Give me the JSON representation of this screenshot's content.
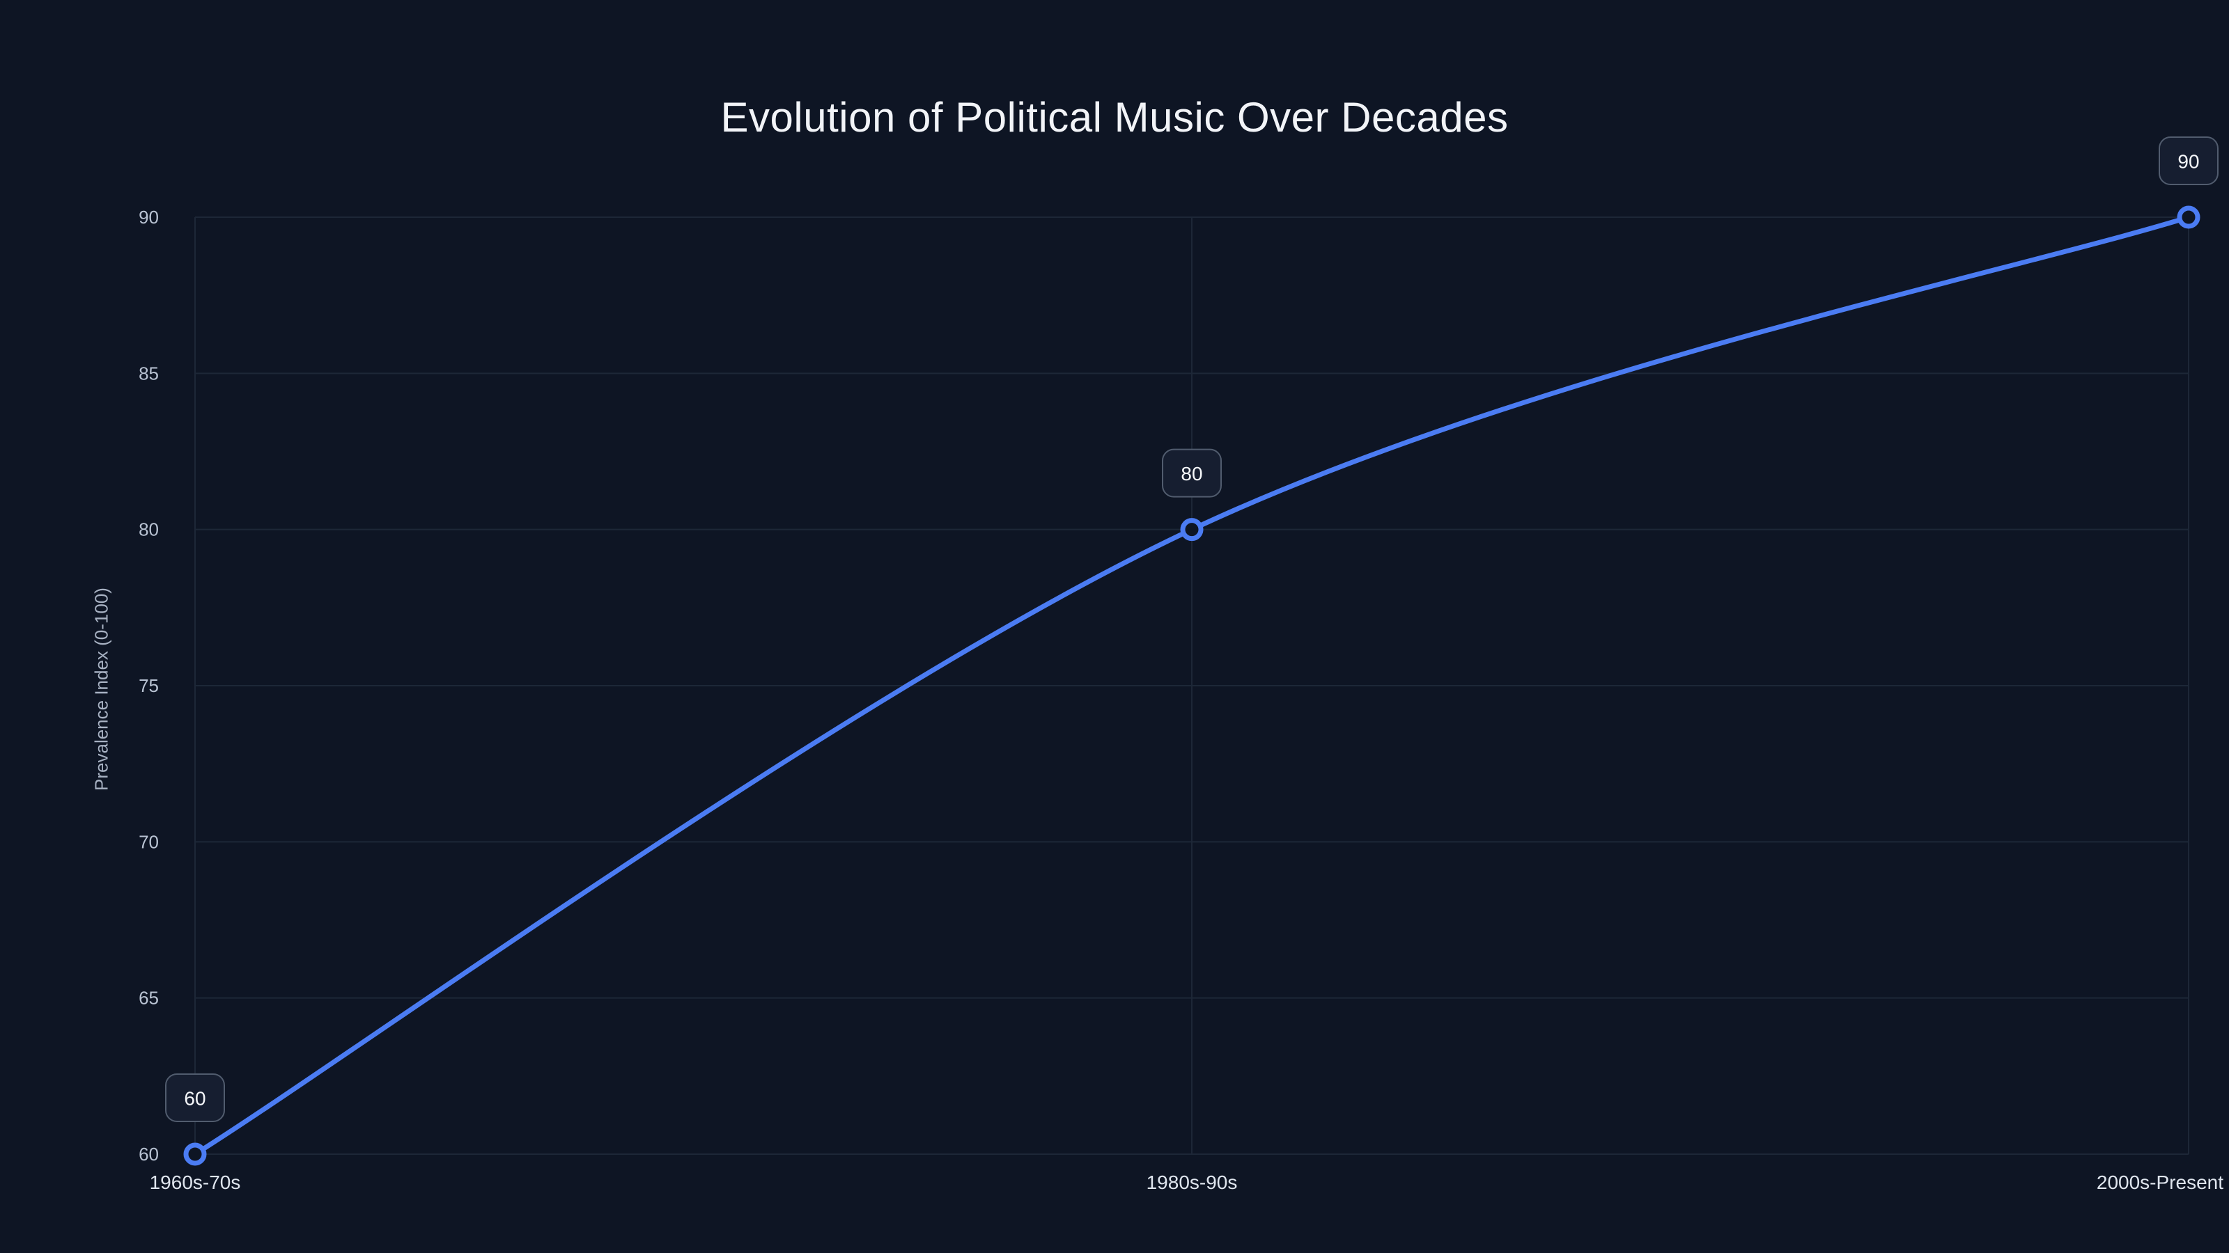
{
  "chart_data": {
    "type": "line",
    "title": "Evolution of Political Music Over Decades",
    "xlabel": "",
    "ylabel": "Prevalence Index (0-100)",
    "categories": [
      "1960s-70s",
      "1980s-90s",
      "2000s-Present"
    ],
    "series": [
      {
        "name": "Prevalence Index",
        "values": [
          60,
          80,
          90
        ]
      }
    ],
    "data_labels": [
      "60",
      "80",
      "90"
    ],
    "ylim": [
      60,
      90
    ],
    "yticks": [
      60,
      65,
      70,
      75,
      80,
      85,
      90
    ],
    "grid": true,
    "smooth": true,
    "legend": null,
    "colors": {
      "background": "#0e1524",
      "line": "#4b7cf3",
      "point_fill": "#0e1524",
      "grid": "#1d2737",
      "tick_text": "#b9c3d3",
      "axis_text": "#dfe5ee",
      "title_text": "#f2f4f8",
      "ylabel_text": "#a8b2c3",
      "label_box_bg": "#161e30",
      "label_box_border": "#515c6e",
      "label_text": "#f5f7fa"
    }
  }
}
